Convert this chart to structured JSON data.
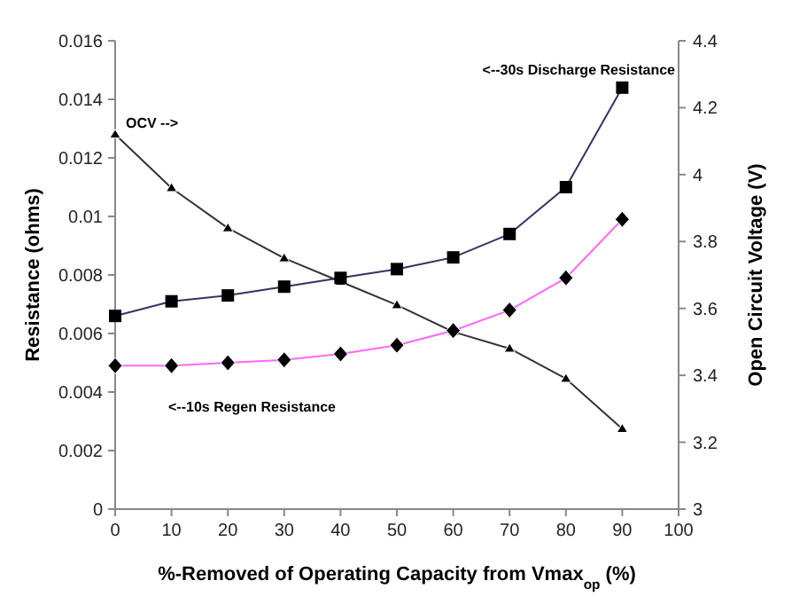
{
  "chart_data": {
    "type": "line",
    "xlabel": "%-Removed of Operating Capacity from Vmax$_{op}$ (%)",
    "ylabel": "Resistance (ohms)",
    "y2label": "Open Circuit Voltage (V)",
    "x": [
      0,
      10,
      20,
      30,
      40,
      50,
      60,
      70,
      80,
      90
    ],
    "series": [
      {
        "color": "#333366",
        "marker": "square",
        "values": [
          0.0066,
          0.0071,
          0.0073,
          0.0076,
          0.0079,
          0.0082,
          0.0086,
          0.0094,
          0.011,
          0.0144
        ]
      },
      {
        "color": "#ff66ff",
        "marker": "diamond",
        "values": [
          0.0049,
          0.0049,
          0.005,
          0.0051,
          0.0053,
          0.0056,
          0.0061,
          0.0068,
          0.0079,
          0.0099
        ]
      },
      {
        "color": "#333333",
        "marker": "triangle",
        "axis": "y2",
        "values": [
          4.12,
          3.96,
          3.84,
          3.75,
          3.68,
          3.61,
          3.53,
          3.48,
          3.39,
          3.24
        ]
      }
    ],
    "xlim": [
      0,
      100
    ],
    "xticks": [
      0,
      10,
      20,
      30,
      40,
      50,
      60,
      70,
      80,
      90,
      100
    ],
    "ylim": [
      0,
      0.016
    ],
    "yticks": [
      0,
      0.002,
      0.004,
      0.006,
      0.008,
      0.01,
      0.012,
      0.014,
      0.016
    ],
    "y2lim": [
      3,
      4.4
    ],
    "y2ticks": [
      3,
      3.2,
      3.4,
      3.6,
      3.8,
      4,
      4.2,
      4.4
    ],
    "grid": false,
    "annotations": [
      "OCV -->",
      "<--30s Discharge Resistance",
      "<--10s Regen Resistance"
    ]
  }
}
